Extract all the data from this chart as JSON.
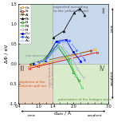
{
  "xlabel": "d$_{ads}$ / Å",
  "ylabel": "ΔΦ / eV",
  "xlim": [
    0.4,
    3.0
  ],
  "ylim": [
    -1.0,
    1.5
  ],
  "quadrant_colors": {
    "I": "#c8dfc8",
    "II": "#c8d8ec",
    "III": "#ecd4c0",
    "IV": "#d8eccc"
  },
  "series": [
    {
      "name": "Ca",
      "color": "#ff9900",
      "marker": "s",
      "mfc": "white",
      "points": [
        [
          0.7,
          -0.08
        ],
        [
          0.95,
          -0.05
        ],
        [
          2.6,
          0.35
        ]
      ]
    },
    {
      "name": "Sr",
      "color": "#dd0000",
      "marker": "s",
      "mfc": "white",
      "points": [
        [
          0.72,
          -0.12
        ],
        [
          0.98,
          -0.07
        ],
        [
          2.68,
          0.28
        ]
      ]
    },
    {
      "name": "Al",
      "color": "#885522",
      "marker": "v",
      "mfc": "#885522",
      "points": [
        [
          0.74,
          -0.02
        ],
        [
          1.0,
          0.04
        ],
        [
          2.5,
          0.32
        ]
      ]
    },
    {
      "name": "Pb",
      "color": "#111111",
      "marker": "^",
      "mfc": "#111111",
      "points": [
        [
          1.42,
          0.65
        ],
        [
          1.72,
          0.82
        ],
        [
          2.02,
          1.28
        ],
        [
          2.18,
          1.38
        ],
        [
          2.32,
          1.22
        ]
      ]
    },
    {
      "name": "Ni",
      "color": "#008800",
      "marker": "s",
      "mfc": "white",
      "points": [
        [
          0.8,
          0.0
        ],
        [
          1.1,
          0.07
        ],
        [
          1.52,
          0.46
        ],
        [
          1.82,
          0.09
        ],
        [
          2.0,
          -0.22
        ],
        [
          2.15,
          -0.42
        ]
      ]
    },
    {
      "name": "Pd",
      "color": "#44cc44",
      "marker": "s",
      "mfc": "white",
      "points": [
        [
          0.84,
          0.02
        ],
        [
          1.18,
          0.1
        ],
        [
          1.6,
          0.46
        ],
        [
          1.9,
          0.08
        ],
        [
          2.06,
          -0.3
        ],
        [
          2.24,
          -0.6
        ]
      ]
    },
    {
      "name": "Pt",
      "color": "#aaaaaa",
      "marker": "o",
      "mfc": "white",
      "points": [
        [
          0.88,
          0.03
        ],
        [
          1.22,
          0.11
        ],
        [
          1.64,
          0.46
        ],
        [
          1.94,
          0.16
        ],
        [
          2.1,
          -0.12
        ],
        [
          2.28,
          -0.35
        ]
      ]
    },
    {
      "name": "Cu",
      "color": "#0000cc",
      "marker": "s",
      "mfc": "#0000cc",
      "points": [
        [
          0.84,
          0.0
        ],
        [
          1.18,
          0.08
        ],
        [
          1.5,
          0.56
        ],
        [
          1.78,
          0.6
        ],
        [
          1.98,
          0.3
        ],
        [
          2.2,
          0.06
        ]
      ]
    },
    {
      "name": "Ag",
      "color": "#3366ff",
      "marker": "s",
      "mfc": "#3366ff",
      "points": [
        [
          0.88,
          0.0
        ],
        [
          1.22,
          0.09
        ],
        [
          1.58,
          0.54
        ],
        [
          1.88,
          0.57
        ],
        [
          2.08,
          0.34
        ],
        [
          2.32,
          0.1
        ]
      ]
    },
    {
      "name": "Au",
      "color": "#aabbff",
      "marker": "o",
      "mfc": "white",
      "points": [
        [
          0.92,
          0.01
        ],
        [
          1.26,
          0.1
        ],
        [
          1.62,
          0.5
        ],
        [
          1.92,
          0.53
        ],
        [
          2.12,
          0.3
        ],
        [
          2.38,
          0.07
        ]
      ]
    }
  ],
  "vertical_divider": 1.4,
  "horizontal_divider": 0.0
}
